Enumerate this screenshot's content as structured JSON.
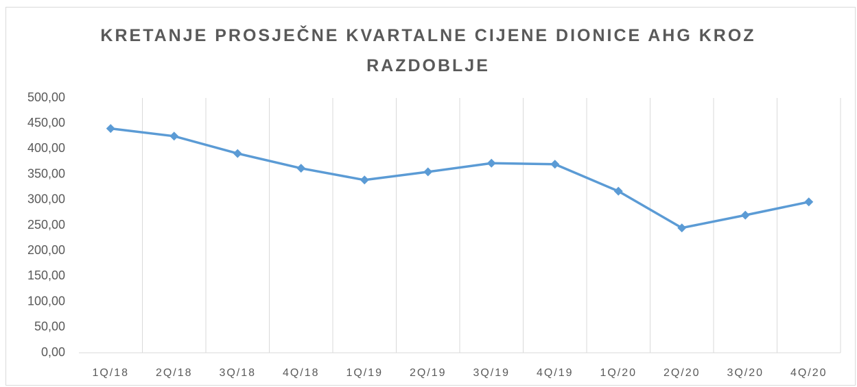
{
  "chart_data": {
    "type": "line",
    "title": "KRETANJE PROSJEČNE KVARTALNE CIJENE DIONICE AHG KROZ RAZDOBLJE",
    "categories": [
      "1Q/18",
      "2Q/18",
      "3Q/18",
      "4Q/18",
      "1Q/19",
      "2Q/19",
      "3Q/19",
      "4Q/19",
      "1Q/20",
      "2Q/20",
      "3Q/20",
      "4Q/20"
    ],
    "values": [
      440,
      425,
      391,
      362,
      339,
      355,
      372,
      370,
      317,
      245,
      270,
      296
    ],
    "color": "#5b9bd5",
    "ylim": [
      0,
      500
    ],
    "yticks": [
      {
        "value": 0,
        "label": "0,00"
      },
      {
        "value": 50,
        "label": "50,00"
      },
      {
        "value": 100,
        "label": "100,00"
      },
      {
        "value": 150,
        "label": "150,00"
      },
      {
        "value": 200,
        "label": "200,00"
      },
      {
        "value": 250,
        "label": "250,00"
      },
      {
        "value": 300,
        "label": "300,00"
      },
      {
        "value": 350,
        "label": "350,00"
      },
      {
        "value": 400,
        "label": "400,00"
      },
      {
        "value": 450,
        "label": "450,00"
      },
      {
        "value": 500,
        "label": "500,00"
      }
    ],
    "grid": true
  }
}
